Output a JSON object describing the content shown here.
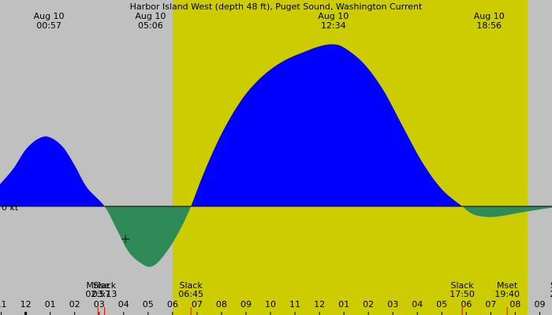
{
  "chart_data": {
    "type": "area",
    "title": "Harbor Island West (depth 48 ft), Puget Sound, Washington Current",
    "zero_label": "0 kt",
    "time_window_hours": [
      -1.05,
      21.5
    ],
    "colors": {
      "background": "#c0c0c0",
      "daylight": "#cccc00",
      "flood": "#0000ff",
      "ebb": "#2e8b57",
      "tick": "#000000",
      "event_tick": "#ff0000"
    },
    "daylight_hours": [
      6.0,
      20.5
    ],
    "extrema_labels": [
      {
        "date": "Aug 10",
        "time": "00:57",
        "hour": 0.95
      },
      {
        "date": "Aug 10",
        "time": "05:06",
        "hour": 5.1
      },
      {
        "date": "Aug 10",
        "time": "12:34",
        "hour": 12.57
      },
      {
        "date": "Aug 10",
        "time": "18:56",
        "hour": 18.93
      }
    ],
    "event_labels": [
      {
        "name": "Mrise",
        "time": "02:57",
        "hour": 2.95
      },
      {
        "name": "Slack",
        "time": "03:13",
        "hour": 3.22
      },
      {
        "name": "Slack",
        "time": "06:45",
        "hour": 6.75
      },
      {
        "name": "Slack",
        "time": "17:50",
        "hour": 17.83
      },
      {
        "name": "Mset",
        "time": "19:40",
        "hour": 19.67
      },
      {
        "name": "Sla",
        "time": "21:",
        "hour": 21.7
      }
    ],
    "x_tick_labels": [
      {
        "label": "11",
        "hour": -1
      },
      {
        "label": "12",
        "hour": 0
      },
      {
        "label": "01",
        "hour": 1
      },
      {
        "label": "02",
        "hour": 2
      },
      {
        "label": "03",
        "hour": 3
      },
      {
        "label": "04",
        "hour": 4
      },
      {
        "label": "05",
        "hour": 5
      },
      {
        "label": "06",
        "hour": 6
      },
      {
        "label": "07",
        "hour": 7
      },
      {
        "label": "08",
        "hour": 8
      },
      {
        "label": "09",
        "hour": 9
      },
      {
        "label": "10",
        "hour": 10
      },
      {
        "label": "11",
        "hour": 11
      },
      {
        "label": "12",
        "hour": 12
      },
      {
        "label": "01",
        "hour": 13
      },
      {
        "label": "02",
        "hour": 14
      },
      {
        "label": "03",
        "hour": 15
      },
      {
        "label": "04",
        "hour": 16
      },
      {
        "label": "05",
        "hour": 17
      },
      {
        "label": "06",
        "hour": 18
      },
      {
        "label": "07",
        "hour": 19
      },
      {
        "label": "08",
        "hour": 20
      },
      {
        "label": "09",
        "hour": 21
      }
    ],
    "series": [
      {
        "points": [
          [
            -1.05,
            0.35
          ],
          [
            -0.5,
            0.6
          ],
          [
            0.0,
            0.9
          ],
          [
            0.5,
            1.07
          ],
          [
            0.95,
            1.1
          ],
          [
            1.5,
            0.95
          ],
          [
            2.0,
            0.65
          ],
          [
            2.5,
            0.3
          ],
          [
            3.22,
            0.0
          ],
          [
            3.7,
            -0.35
          ],
          [
            4.2,
            -0.72
          ],
          [
            4.7,
            -0.9
          ],
          [
            5.1,
            -0.96
          ],
          [
            5.5,
            -0.85
          ],
          [
            6.0,
            -0.58
          ],
          [
            6.4,
            -0.3
          ],
          [
            6.75,
            0.0
          ],
          [
            7.3,
            0.55
          ],
          [
            8.0,
            1.15
          ],
          [
            8.8,
            1.68
          ],
          [
            9.6,
            2.04
          ],
          [
            10.5,
            2.3
          ],
          [
            11.5,
            2.47
          ],
          [
            12.1,
            2.55
          ],
          [
            12.57,
            2.57
          ],
          [
            13.0,
            2.52
          ],
          [
            13.8,
            2.27
          ],
          [
            14.6,
            1.85
          ],
          [
            15.4,
            1.27
          ],
          [
            16.2,
            0.7
          ],
          [
            17.0,
            0.27
          ],
          [
            17.83,
            0.0
          ],
          [
            18.3,
            -0.13
          ],
          [
            18.93,
            -0.17
          ],
          [
            19.5,
            -0.15
          ],
          [
            20.2,
            -0.1
          ],
          [
            21.0,
            -0.05
          ],
          [
            21.5,
            -0.02
          ]
        ]
      }
    ]
  }
}
